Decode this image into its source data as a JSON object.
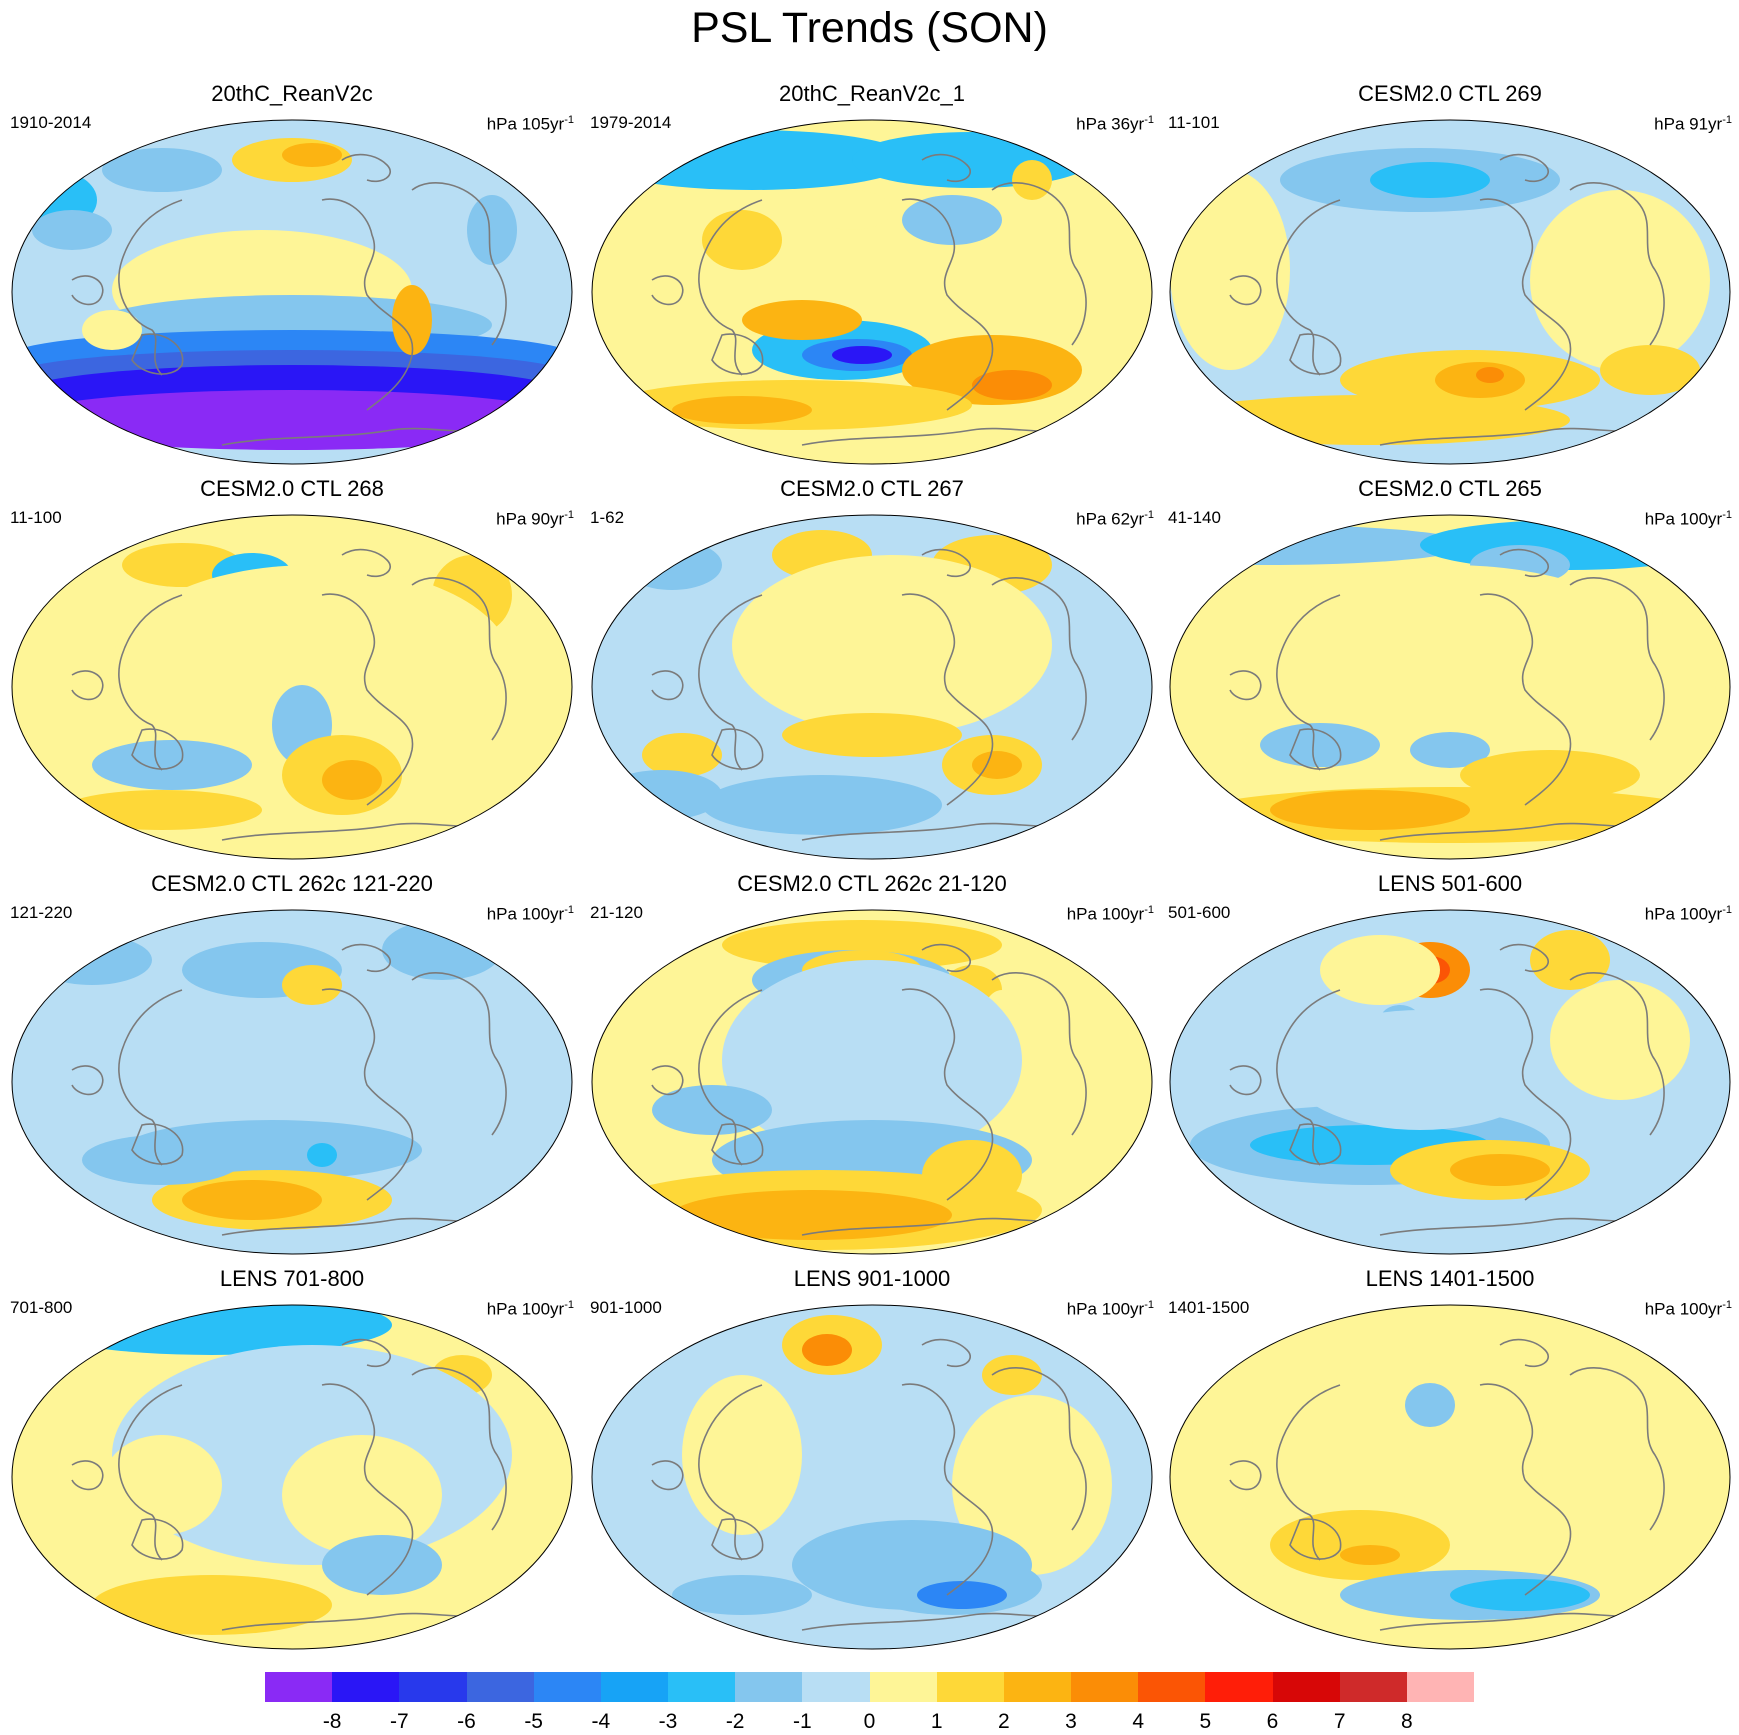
{
  "title": "PSL Trends (SON)",
  "colors": {
    "coast": "#7b7b7b",
    "levels": [
      "#8a2af5",
      "#2a16f6",
      "#2839ec",
      "#3c66e0",
      "#2c86f5",
      "#17a3f6",
      "#29bff7",
      "#84c6ee",
      "#b8def4",
      "#fef597",
      "#fed838",
      "#fcb412",
      "#fb8d06",
      "#fb5505",
      "#ff1e08",
      "#d70707",
      "#cf2a2a",
      "#ffb4b4"
    ]
  },
  "colorbar": {
    "ticks": [
      "-8",
      "-7",
      "-6",
      "-5",
      "-4",
      "-3",
      "-2",
      "-1",
      "0",
      "1",
      "2",
      "3",
      "4",
      "5",
      "6",
      "7",
      "8"
    ]
  },
  "panels": [
    {
      "title": "20thC_ReanV2c",
      "period": "1910-2014",
      "units_prefix": "hPa",
      "units_span": "105yr",
      "units_exp": "-1"
    },
    {
      "title": "20thC_ReanV2c_1",
      "period": "1979-2014",
      "units_prefix": "hPa",
      "units_span": "36yr",
      "units_exp": "-1"
    },
    {
      "title": "CESM2.0 CTL 269",
      "period": "11-101",
      "units_prefix": "hPa",
      "units_span": "91yr",
      "units_exp": "-1"
    },
    {
      "title": "CESM2.0 CTL 268",
      "period": "11-100",
      "units_prefix": "hPa",
      "units_span": "90yr",
      "units_exp": "-1"
    },
    {
      "title": "CESM2.0 CTL 267",
      "period": "1-62",
      "units_prefix": "hPa",
      "units_span": "62yr",
      "units_exp": "-1"
    },
    {
      "title": "CESM2.0 CTL 265",
      "period": "41-140",
      "units_prefix": "hPa",
      "units_span": "100yr",
      "units_exp": "-1"
    },
    {
      "title": "CESM2.0 CTL 262c 121-220",
      "period": "121-220",
      "units_prefix": "hPa",
      "units_span": "100yr",
      "units_exp": "-1"
    },
    {
      "title": "CESM2.0 CTL 262c 21-120",
      "period": "21-120",
      "units_prefix": "hPa",
      "units_span": "100yr",
      "units_exp": "-1"
    },
    {
      "title": "LENS 501-600",
      "period": "501-600",
      "units_prefix": "hPa",
      "units_span": "100yr",
      "units_exp": "-1"
    },
    {
      "title": "LENS 701-800",
      "period": "701-800",
      "units_prefix": "hPa",
      "units_span": "100yr",
      "units_exp": "-1"
    },
    {
      "title": "LENS 901-1000",
      "period": "901-1000",
      "units_prefix": "hPa",
      "units_span": "100yr",
      "units_exp": "-1"
    },
    {
      "title": "LENS 1401-1500",
      "period": "1401-1500",
      "units_prefix": "hPa",
      "units_span": "100yr",
      "units_exp": "-1"
    }
  ]
}
